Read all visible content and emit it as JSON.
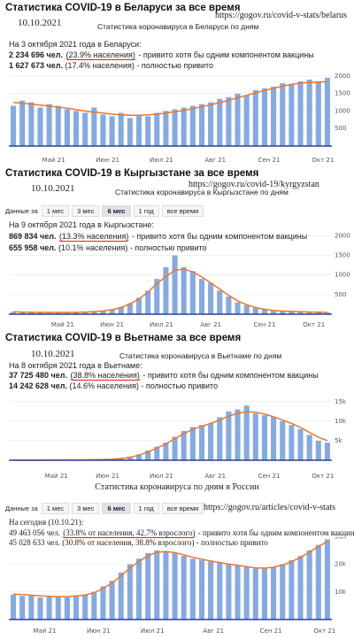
{
  "panels": [
    {
      "title": "Статистика COVID-19 в Беларуси за все время",
      "date": "10.10.2021",
      "url": "https://gogov.ru/covid-v-stats/belarus",
      "subtitle": "Статистика коронавируса в Беларуси по дням",
      "as_of": "На 3 октября 2021 года в Беларуси:",
      "stats": [
        {
          "count": "2 234 696 чел.",
          "share": "(23.9% населения)",
          "text": "- привито хотя бы одним компонентом вакцины"
        },
        {
          "count": "1 627 673 чел.",
          "share": "(17.4% населения)",
          "text": "- полностью привито"
        }
      ],
      "chart_data": {
        "type": "bar",
        "grid": true,
        "xlim": [
          0,
          36
        ],
        "ylim": [
          0,
          2100
        ],
        "yticks": [
          500,
          1000,
          1500,
          2000
        ],
        "xticks": [
          {
            "value": 5,
            "label": "Май 21"
          },
          {
            "value": 11,
            "label": "Июн 21"
          },
          {
            "value": 17,
            "label": "Июл 21"
          },
          {
            "value": 23,
            "label": "Авг 21"
          },
          {
            "value": 29,
            "label": "Сен 21"
          },
          {
            "value": 35,
            "label": "Окт 21"
          }
        ],
        "series": [
          {
            "type": "bar",
            "color": "#86aade",
            "values": [
              1150,
              1300,
              1250,
              1100,
              1200,
              1150,
              1050,
              1000,
              950,
              1100,
              900,
              850,
              950,
              800,
              900,
              850,
              950,
              1000,
              1050,
              1100,
              1150,
              1200,
              1250,
              1350,
              1400,
              1500,
              1450,
              1600,
              1650,
              1700,
              1800,
              1750,
              1850,
              1900,
              1850,
              1950
            ]
          },
          {
            "type": "line",
            "color": "#e8782f",
            "values": [
              1250,
              1220,
              1200,
              1170,
              1140,
              1110,
              1080,
              1040,
              1000,
              970,
              940,
              910,
              890,
              880,
              880,
              890,
              910,
              940,
              980,
              1020,
              1070,
              1120,
              1180,
              1240,
              1310,
              1380,
              1450,
              1520,
              1590,
              1650,
              1710,
              1760,
              1800,
              1820,
              1830,
              1840
            ]
          }
        ]
      }
    },
    {
      "title": "Статистика COVID-19 в Кыргызстане за все время",
      "date": "10.10.2021",
      "url": "https://gogov.ru/covid-19/kyrgyzstan",
      "subtitle": "Статистика коронавируса в Кыргызстане по дням",
      "buttons": {
        "label": "Данные за",
        "options": [
          "1 мес",
          "3 мес",
          "6 мес",
          "1 год",
          "все время"
        ],
        "selected": 2
      },
      "as_of": "На 9 октября 2021 года в Кыргызстане:",
      "stats": [
        {
          "count": "869 834 чел.",
          "share": "(13.3% населения)",
          "text": "- привито хотя бы одним компонентом вакцины"
        },
        {
          "count": "655 958 чел.",
          "share": "(10.1% населения)",
          "text": "- полностью привито"
        }
      ],
      "chart_data": {
        "type": "bar",
        "grid": true,
        "xlim": [
          0,
          36
        ],
        "ylim": [
          0,
          2100
        ],
        "yticks": [
          500,
          1000,
          1500,
          2000
        ],
        "xticks": [
          {
            "value": 6,
            "label": "Май 21"
          },
          {
            "value": 11.5,
            "label": "Июн 21"
          },
          {
            "value": 17,
            "label": "Июл 21"
          },
          {
            "value": 22.5,
            "label": "Авг 21"
          },
          {
            "value": 28.5,
            "label": "Сен 21"
          },
          {
            "value": 34,
            "label": "Окт 21"
          }
        ],
        "series": [
          {
            "type": "bar",
            "color": "#86aade",
            "values": [
              60,
              50,
              40,
              45,
              50,
              40,
              45,
              50,
              60,
              70,
              90,
              120,
              180,
              280,
              420,
              600,
              900,
              1200,
              1500,
              1200,
              1100,
              900,
              800,
              600,
              450,
              300,
              220,
              160,
              120,
              90,
              80,
              70,
              60,
              55,
              50,
              45
            ]
          },
          {
            "type": "line",
            "color": "#e8782f",
            "values": [
              60,
              55,
              50,
              47,
              46,
              45,
              46,
              48,
              55,
              65,
              85,
              115,
              170,
              260,
              390,
              560,
              780,
              960,
              1120,
              1150,
              1080,
              950,
              800,
              640,
              480,
              340,
              240,
              170,
              125,
              95,
              80,
              70,
              62,
              56,
              50,
              46
            ]
          }
        ]
      }
    },
    {
      "title": "Статистика COVID-19 в Вьетнаме за все время",
      "date": "10.10.2021",
      "subtitle": "Статистика коронавируса в Вьетнаме по дням",
      "as_of": "На 8 октября 2021 года в Вьетнаме:",
      "stats": [
        {
          "count": "37 725 480 чел.",
          "share": "(38.8% населения)",
          "text": "- привито хотя бы одним компонентом вакцины"
        },
        {
          "count": "14 242 628 чел.",
          "share": "(14.6% населения)",
          "text": "- полностью привито"
        }
      ],
      "chart_data": {
        "type": "bar",
        "grid": true,
        "xlim": [
          0,
          36
        ],
        "ylim": [
          0,
          17000
        ],
        "yticks": [
          {
            "value": 5000,
            "label": "5k"
          },
          {
            "value": 10000,
            "label": "10k"
          },
          {
            "value": 15000,
            "label": "15k"
          }
        ],
        "xticks": [
          {
            "value": 5.3,
            "label": "Май 21"
          },
          {
            "value": 11,
            "label": "Июн 21"
          },
          {
            "value": 17,
            "label": "Июл 21"
          },
          {
            "value": 23,
            "label": "Авг 21"
          },
          {
            "value": 29,
            "label": "Сен 21"
          },
          {
            "value": 35,
            "label": "Окт 21"
          }
        ],
        "series": [
          {
            "type": "bar",
            "color": "#86aade",
            "values": [
              10,
              10,
              10,
              10,
              20,
              30,
              50,
              80,
              100,
              150,
              200,
              300,
              500,
              900,
              1500,
              2500,
              3500,
              4500,
              6000,
              7500,
              8500,
              9000,
              9500,
              11000,
              12500,
              13000,
              14000,
              12000,
              11500,
              11000,
              10000,
              9000,
              8000,
              6500,
              5000,
              4500
            ]
          },
          {
            "type": "line",
            "color": "#e8782f",
            "values": [
              10,
              10,
              10,
              10,
              15,
              25,
              40,
              60,
              90,
              130,
              180,
              260,
              420,
              750,
              1300,
              2100,
              3100,
              4200,
              5500,
              6800,
              7900,
              8700,
              9400,
              10300,
              11300,
              12000,
              12400,
              12300,
              11800,
              11100,
              10300,
              9400,
              8400,
              7100,
              5900,
              5000
            ]
          }
        ]
      }
    },
    {
      "title": "Статистика коронавируса по дням в России",
      "url": "https://gogov.ru/articles/covid-v-stats",
      "buttons": {
        "label": "Данные за",
        "options": [
          "1 мес",
          "3 мес",
          "6 мес",
          "1 год",
          "все время"
        ],
        "selected": 2
      },
      "as_of": "На сегодня (10.10.21):",
      "stats": [
        {
          "count": "49 463 056 чел.",
          "share": "(33.8% от населения, 42.7% взрослого)",
          "text": "- привито хотя бы одним компонентом вакцины"
        },
        {
          "count": "45 028 633 чел.",
          "share": "(30.8% от населения, 38.8% взрослого)",
          "text": "- полностью привито"
        }
      ],
      "chart_data": {
        "type": "bar",
        "grid": true,
        "xlim": [
          0,
          36
        ],
        "ylim": [
          0,
          32000
        ],
        "yticks": [
          {
            "value": 10000,
            "label": "10k"
          },
          {
            "value": 20000,
            "label": "20k"
          },
          {
            "value": 30000,
            "label": "30k"
          }
        ],
        "xticks": [
          {
            "value": 4,
            "label": "Май 21"
          },
          {
            "value": 10,
            "label": "Июн 21"
          },
          {
            "value": 16,
            "label": "Июл 21"
          },
          {
            "value": 22.8,
            "label": "Авг 21"
          },
          {
            "value": 29.2,
            "label": "Сен 21"
          },
          {
            "value": 35.2,
            "label": "Окт 21"
          }
        ],
        "series": [
          {
            "type": "bar",
            "color": "#86aade",
            "values": [
              9000,
              8500,
              8700,
              8000,
              8200,
              8500,
              8000,
              8800,
              9000,
              10000,
              12000,
              14000,
              17000,
              20000,
              22000,
              24000,
              25000,
              24500,
              24000,
              23000,
              22000,
              21500,
              21000,
              20500,
              20000,
              19500,
              19000,
              18500,
              18500,
              19000,
              20000,
              21500,
              23000,
              25000,
              27000,
              29000
            ]
          },
          {
            "type": "line",
            "color": "#e8782f",
            "values": [
              9200,
              9000,
              8800,
              8600,
              8400,
              8300,
              8300,
              8500,
              8900,
              9700,
              11200,
              13200,
              15800,
              18600,
              21000,
              23000,
              24300,
              24600,
              24200,
              23400,
              22500,
              21800,
              21200,
              20600,
              20100,
              19600,
              19100,
              18700,
              18600,
              18900,
              19700,
              20900,
              22500,
              24400,
              26400,
              28200
            ]
          }
        ]
      }
    }
  ]
}
